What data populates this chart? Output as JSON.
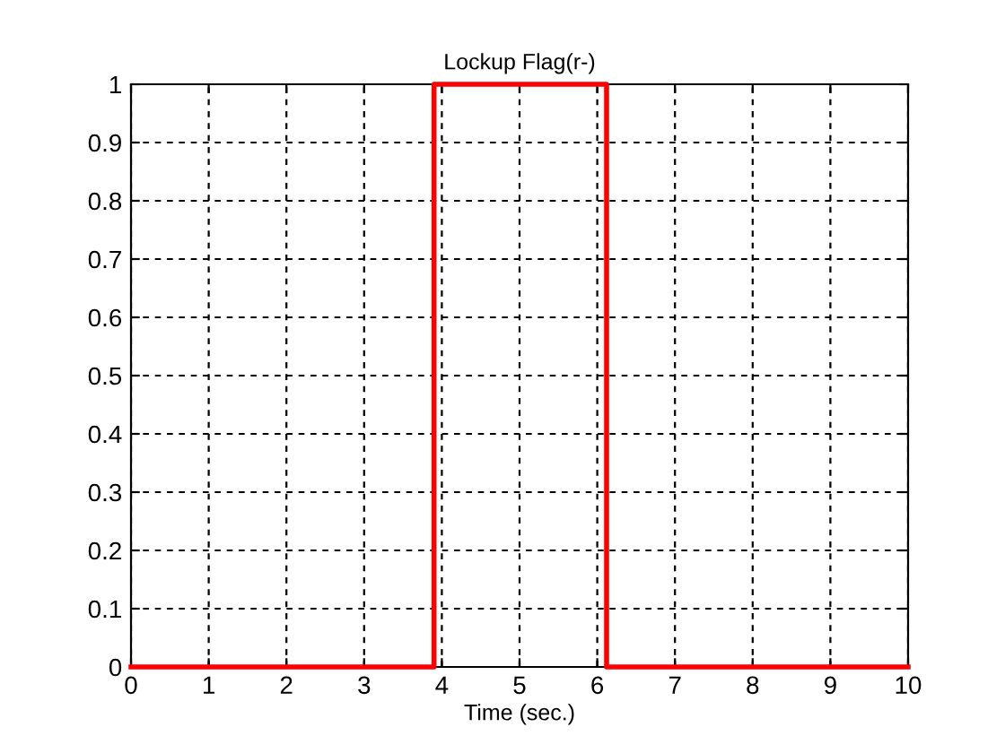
{
  "chart_data": {
    "type": "step",
    "title": "Lockup Flag(r-)",
    "xlabel": "Time (sec.)",
    "x": [
      0,
      3.9,
      6.12,
      10
    ],
    "series": [
      {
        "color": "#ff0000",
        "values": [
          0,
          1,
          0,
          0
        ]
      }
    ],
    "xlim": [
      0,
      10
    ],
    "xticks": [
      0,
      1,
      2,
      3,
      4,
      5,
      6,
      7,
      8,
      9,
      10
    ],
    "ylim": [
      0,
      1
    ],
    "yticks": [
      0,
      0.1,
      0.2,
      0.3,
      0.4,
      0.5,
      0.6,
      0.7,
      0.8,
      0.9,
      1
    ],
    "grid": true,
    "line_style": "solid"
  }
}
